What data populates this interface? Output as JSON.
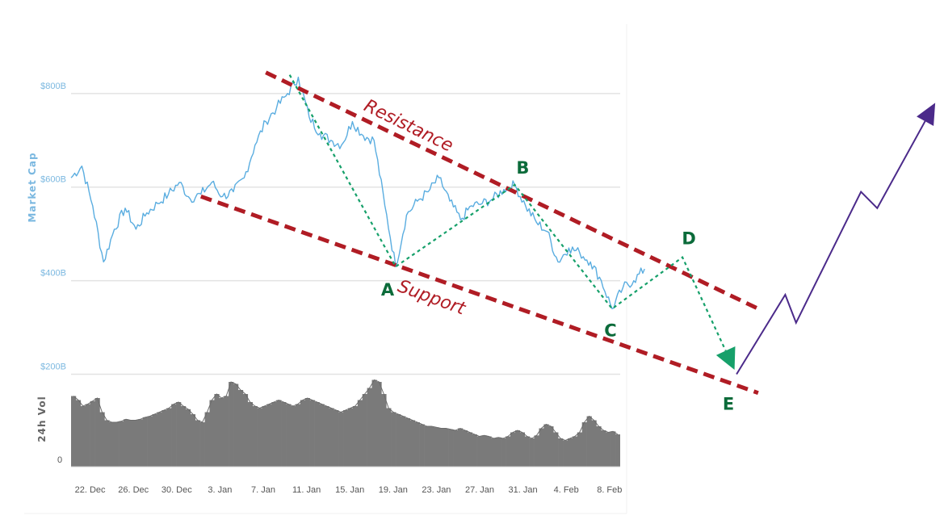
{
  "chart_data": {
    "type": "line",
    "title": "",
    "ylabel": "Market Cap",
    "ylabel_volume": "24h Vol",
    "y_ticks": [
      "$200B",
      "$400B",
      "$600B",
      "$800B"
    ],
    "y_tick_values": [
      200,
      400,
      600,
      800
    ],
    "ylim": [
      200,
      840
    ],
    "volume_zero_label": "0",
    "x_ticks": [
      "22. Dec",
      "26. Dec",
      "30. Dec",
      "3. Jan",
      "7. Jan",
      "11. Jan",
      "15. Jan",
      "19. Jan",
      "23. Jan",
      "27. Jan",
      "31. Jan",
      "4. Feb",
      "8. Feb"
    ],
    "x_tick_days": [
      4,
      8,
      12,
      16,
      20,
      24,
      28,
      32,
      36,
      40,
      44,
      48,
      52
    ],
    "grid": true,
    "series": [
      {
        "name": "",
        "unit_x": "days",
        "unit_y": "billion USD",
        "points": [
          [
            0,
            620
          ],
          [
            1,
            645
          ],
          [
            2,
            560
          ],
          [
            3,
            440
          ],
          [
            4,
            510
          ],
          [
            5,
            555
          ],
          [
            6,
            510
          ],
          [
            7,
            545
          ],
          [
            8,
            565
          ],
          [
            9,
            585
          ],
          [
            10,
            610
          ],
          [
            11,
            575
          ],
          [
            12,
            585
          ],
          [
            13,
            610
          ],
          [
            14,
            580
          ],
          [
            15,
            590
          ],
          [
            16,
            620
          ],
          [
            17,
            690
          ],
          [
            18,
            740
          ],
          [
            19,
            770
          ],
          [
            20,
            800
          ],
          [
            21,
            835
          ],
          [
            22,
            750
          ],
          [
            23,
            715
          ],
          [
            24,
            700
          ],
          [
            25,
            690
          ],
          [
            26,
            740
          ],
          [
            27,
            710
          ],
          [
            28,
            700
          ],
          [
            29,
            560
          ],
          [
            30,
            430
          ],
          [
            31,
            540
          ],
          [
            32,
            570
          ],
          [
            33,
            590
          ],
          [
            34,
            620
          ],
          [
            35,
            570
          ],
          [
            36,
            530
          ],
          [
            37,
            560
          ],
          [
            38,
            565
          ],
          [
            39,
            575
          ],
          [
            40,
            595
          ],
          [
            41,
            605
          ],
          [
            42,
            560
          ],
          [
            43,
            525
          ],
          [
            44,
            505
          ],
          [
            45,
            440
          ],
          [
            46,
            470
          ],
          [
            47,
            460
          ],
          [
            48,
            440
          ],
          [
            49,
            400
          ],
          [
            50,
            340
          ],
          [
            51,
            385
          ],
          [
            52,
            400
          ],
          [
            53,
            425
          ]
        ]
      },
      {
        "name": "",
        "type": "bar",
        "unit_y": "relative",
        "values": [
          70,
          66,
          60,
          62,
          65,
          68,
          54,
          46,
          44,
          44,
          45,
          47,
          46,
          46,
          47,
          49,
          50,
          52,
          54,
          56,
          58,
          62,
          64,
          60,
          57,
          52,
          46,
          44,
          54,
          66,
          72,
          68,
          70,
          84,
          82,
          76,
          72,
          64,
          60,
          58,
          60,
          62,
          64,
          66,
          64,
          62,
          60,
          62,
          66,
          68,
          66,
          64,
          62,
          60,
          58,
          56,
          54,
          56,
          58,
          60,
          66,
          72,
          78,
          86,
          84,
          72,
          58,
          54,
          52,
          50,
          48,
          46,
          44,
          42,
          40,
          40,
          39,
          38,
          38,
          37,
          36,
          38,
          36,
          34,
          32,
          30,
          31,
          30,
          28,
          29,
          28,
          30,
          34,
          36,
          34,
          30,
          28,
          31,
          38,
          42,
          40,
          34,
          28,
          26,
          28,
          30,
          34,
          44,
          50,
          46,
          40,
          36,
          34,
          35,
          32
        ]
      }
    ],
    "annotations": {
      "resistance_label": "Resistance",
      "support_label": "Support",
      "points": [
        {
          "label": "A",
          "day": 30,
          "value": 430
        },
        {
          "label": "B",
          "day": 41,
          "value": 605
        },
        {
          "label": "C",
          "day": 50,
          "value": 340
        },
        {
          "label": "D",
          "day": 56.5,
          "value": 450
        },
        {
          "label": "E",
          "day": 61.5,
          "value": 200
        }
      ],
      "resistance_line": [
        [
          18,
          845
        ],
        [
          63.5,
          340
        ]
      ],
      "support_line": [
        [
          12,
          580
        ],
        [
          63.5,
          160
        ]
      ],
      "projection_arrow": [
        [
          61.5,
          200
        ],
        [
          66,
          370
        ],
        [
          67,
          310
        ],
        [
          73,
          590
        ],
        [
          74.5,
          555
        ],
        [
          79.5,
          765
        ]
      ]
    },
    "colors": {
      "price": "#5aade0",
      "volume": "#7a7a7a",
      "trendline": "#b01c24",
      "wave": "#16a06a",
      "projection": "#4b2a8a",
      "point_label": "#0b6b3a",
      "grid": "#e3e3e3"
    }
  }
}
